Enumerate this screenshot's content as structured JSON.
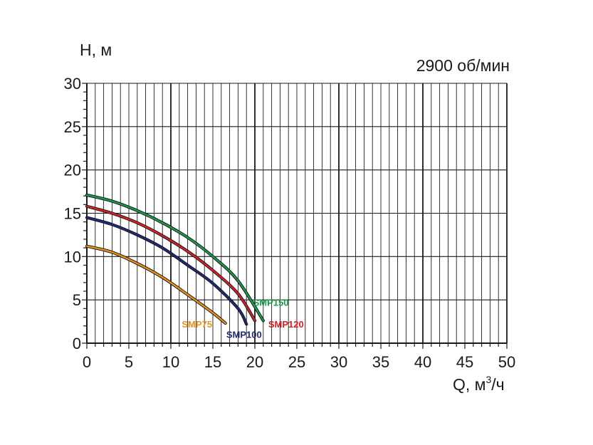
{
  "chart_data": {
    "type": "line",
    "title": "",
    "annotation": "2900 об/мин",
    "ylabel": "H, м",
    "xlabel_main": "Q, м",
    "xlabel_sup": "3",
    "xlabel_tail": "/ч",
    "xlim": [
      0,
      50
    ],
    "ylim": [
      0,
      30
    ],
    "x_ticks": [
      0,
      5,
      10,
      15,
      20,
      25,
      30,
      35,
      40,
      45,
      50
    ],
    "y_ticks": [
      0,
      5,
      10,
      15,
      20,
      25,
      30
    ],
    "grid": true,
    "series": [
      {
        "name": "SMP75",
        "color": "#e8921e",
        "x": [
          0,
          3,
          6,
          9,
          12,
          15,
          16.5
        ],
        "y": [
          11.2,
          10.5,
          9.2,
          7.6,
          5.6,
          3.5,
          2.3
        ]
      },
      {
        "name": "SMP100",
        "color": "#1f2a7a",
        "x": [
          0,
          3,
          6,
          9,
          12,
          15,
          18,
          19
        ],
        "y": [
          14.5,
          13.7,
          12.5,
          11.0,
          9.0,
          6.9,
          4.0,
          2.2
        ]
      },
      {
        "name": "SMP120",
        "color": "#d42227",
        "x": [
          0,
          3,
          6,
          9,
          12,
          15,
          18,
          20
        ],
        "y": [
          15.8,
          15.0,
          13.9,
          12.4,
          10.6,
          8.4,
          5.7,
          2.6
        ]
      },
      {
        "name": "SMP150",
        "color": "#1a9a4a",
        "x": [
          0,
          3,
          6,
          9,
          12,
          15,
          18,
          21
        ],
        "y": [
          17.1,
          16.4,
          15.3,
          13.9,
          12.2,
          10.0,
          7.2,
          2.6
        ]
      }
    ]
  }
}
